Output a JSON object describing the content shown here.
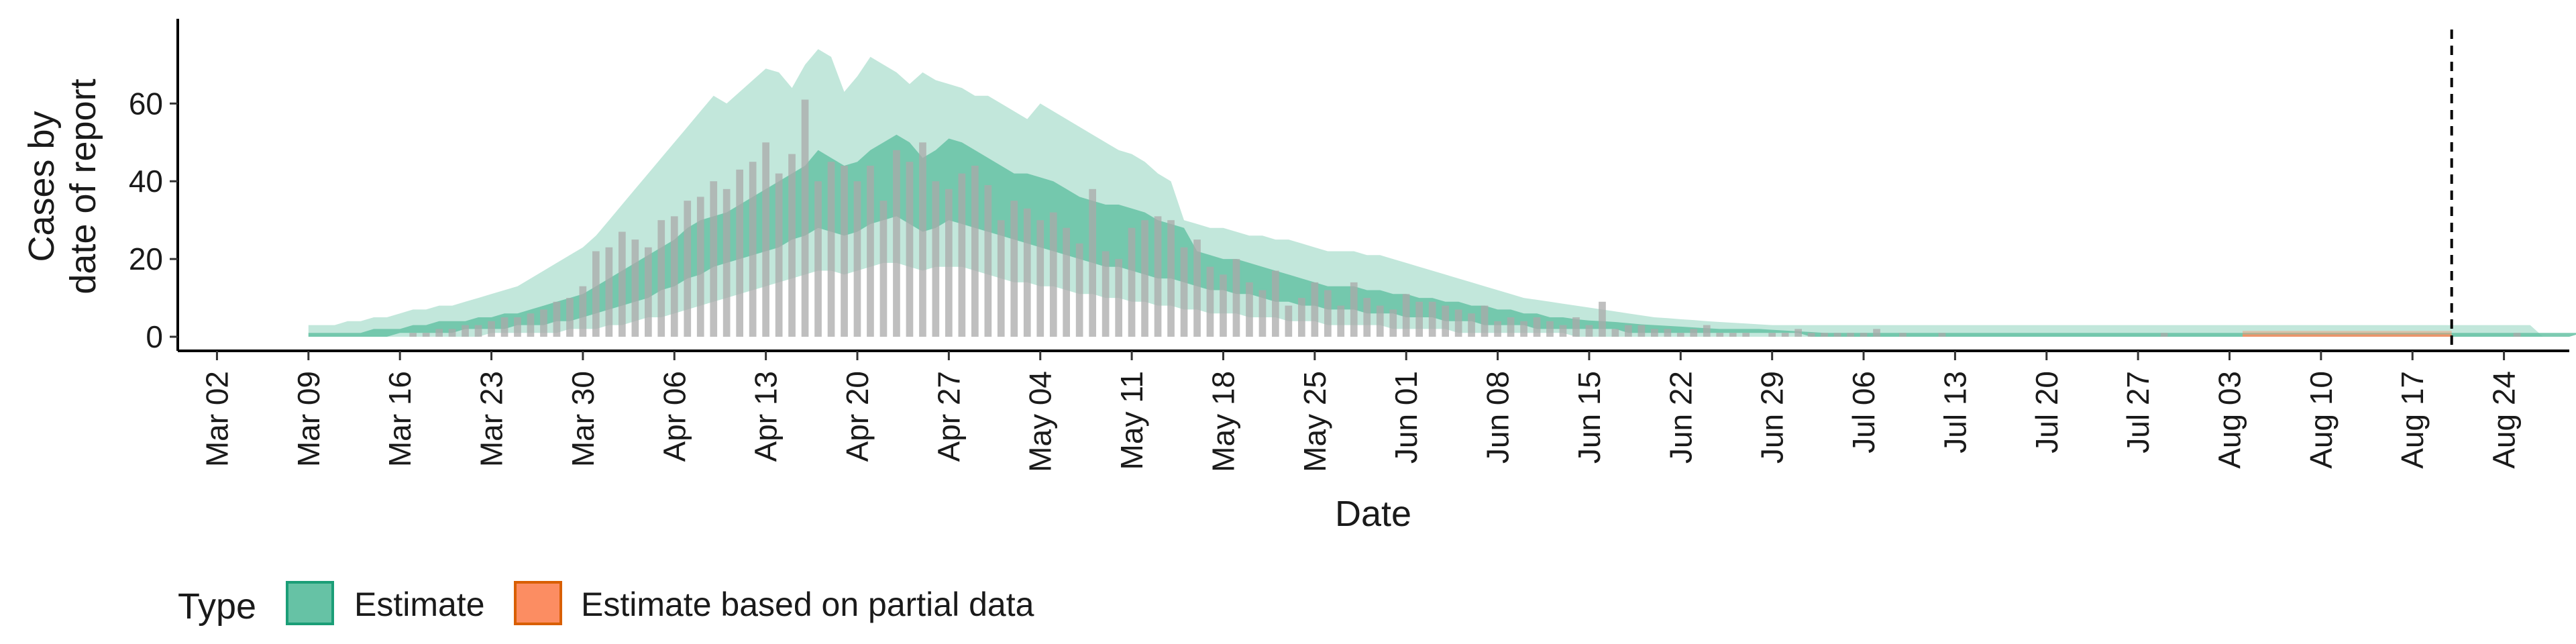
{
  "chart_data": {
    "type": "bar",
    "xlabel": "Date",
    "ylabel_lines": [
      "Cases by",
      "date of report"
    ],
    "ylim": [
      0,
      78
    ],
    "y_ticks": [
      0,
      20,
      40,
      60
    ],
    "x_range": [
      "2020-02-28",
      "2020-08-29"
    ],
    "x_ticks": [
      "Mar 02",
      "Mar 09",
      "Mar 16",
      "Mar 23",
      "Mar 30",
      "Apr 06",
      "Apr 13",
      "Apr 20",
      "Apr 27",
      "May 04",
      "May 11",
      "May 18",
      "May 25",
      "Jun 01",
      "Jun 08",
      "Jun 15",
      "Jun 22",
      "Jun 29",
      "Jul 06",
      "Jul 13",
      "Jul 20",
      "Jul 27",
      "Aug 03",
      "Aug 10",
      "Aug 17",
      "Aug 24"
    ],
    "reference_line_date": "2020-08-20",
    "bar_color": "#a9a9a9",
    "reported_cases": {
      "start_date": "2020-03-09",
      "values": [
        0,
        0,
        0,
        0,
        0,
        0,
        0,
        0,
        1,
        1,
        2,
        2,
        3,
        3,
        4,
        5,
        5,
        6,
        7,
        9,
        10,
        13,
        22,
        23,
        27,
        25,
        23,
        30,
        31,
        35,
        36,
        40,
        38,
        43,
        45,
        50,
        42,
        47,
        61,
        40,
        45,
        44,
        40,
        44,
        35,
        48,
        45,
        50,
        40,
        38,
        42,
        44,
        39,
        30,
        35,
        33,
        30,
        32,
        28,
        24,
        38,
        22,
        20,
        28,
        30,
        31,
        30,
        23,
        25,
        18,
        16,
        20,
        14,
        12,
        17,
        8,
        10,
        14,
        12,
        8,
        14,
        10,
        8,
        7,
        11,
        9,
        9,
        8,
        7,
        6,
        8,
        4,
        5,
        4,
        5,
        4,
        3,
        5,
        3,
        9,
        2,
        3,
        3,
        2,
        2,
        1,
        2,
        3,
        1,
        1,
        1,
        0,
        1,
        1,
        2,
        1,
        1,
        1,
        1,
        1,
        2,
        0,
        1,
        0,
        0,
        1,
        0,
        0,
        0,
        0,
        0,
        0,
        0,
        0,
        0,
        0,
        0,
        0,
        0,
        0,
        0,
        0,
        1,
        0,
        0,
        0,
        0,
        0,
        0,
        0,
        0,
        0,
        0,
        0,
        0,
        0,
        0,
        0,
        0,
        0,
        0,
        0,
        0,
        0,
        0,
        0,
        0,
        0,
        0,
        1,
        0,
        0,
        0
      ]
    },
    "series": [
      {
        "name": "Estimate",
        "color": "#1b9e77",
        "fill": "#66c2a5",
        "start_date": "2020-03-09",
        "upper90": [
          3,
          3,
          3,
          4,
          4,
          5,
          5,
          6,
          7,
          7,
          8,
          8,
          9,
          10,
          11,
          12,
          13,
          15,
          17,
          19,
          21,
          23,
          26,
          30,
          34,
          38,
          42,
          46,
          50,
          54,
          58,
          62,
          60,
          63,
          66,
          69,
          68,
          64,
          70,
          74,
          72,
          63,
          67,
          72,
          70,
          68,
          65,
          68,
          66,
          65,
          64,
          62,
          62,
          60,
          58,
          56,
          60,
          58,
          56,
          54,
          52,
          50,
          48,
          47,
          45,
          42,
          40,
          30,
          29,
          28,
          28,
          27,
          26,
          26,
          25,
          25,
          24,
          23,
          22,
          22,
          22,
          21,
          21,
          20,
          19,
          18,
          17,
          16,
          15,
          14,
          13,
          12,
          11,
          10,
          9.5,
          9,
          8.5,
          8,
          7.5,
          7,
          6.5,
          6,
          5.5,
          5,
          4.8,
          4.5,
          4.3,
          4,
          3.8,
          3.6,
          3.4,
          3.2,
          3,
          3,
          3,
          3,
          3,
          3,
          3,
          3,
          3,
          3,
          3,
          3,
          3,
          3,
          3,
          3,
          3,
          3,
          3,
          3,
          3,
          3,
          3,
          3,
          3,
          3,
          3,
          3,
          3,
          3,
          3,
          3,
          3,
          3,
          3,
          3,
          3,
          3,
          3,
          3,
          3,
          3,
          3,
          3,
          3,
          3,
          3,
          3,
          3,
          3,
          3,
          3,
          3,
          3,
          3,
          3,
          3,
          3,
          3
        ],
        "upper50": [
          1,
          1,
          1,
          1,
          1,
          2,
          2,
          2,
          3,
          3,
          4,
          4,
          4,
          5,
          5,
          6,
          6,
          7,
          8,
          9,
          10,
          11,
          13,
          15,
          17,
          19,
          21,
          23,
          25,
          28,
          30,
          31,
          32,
          34,
          36,
          38,
          40,
          42,
          44,
          48,
          46,
          44,
          45,
          48,
          50,
          52,
          50,
          46,
          48,
          51,
          50,
          48,
          46,
          44,
          42,
          42,
          41,
          40,
          38,
          36,
          35,
          34,
          34,
          33,
          32,
          30,
          29,
          28,
          22,
          21,
          20,
          20,
          19,
          18,
          17,
          16,
          15,
          14,
          13,
          13,
          13,
          12,
          12,
          11,
          11,
          10,
          10,
          9,
          9,
          8,
          8,
          7,
          7,
          6,
          6,
          5,
          5,
          4.5,
          4.2,
          4,
          3.8,
          3.5,
          3.2,
          3,
          2.8,
          2.6,
          2.4,
          2.2,
          2,
          2,
          2,
          2,
          1.8,
          1.6,
          1.4,
          1.2,
          1,
          1,
          1,
          1,
          1,
          1,
          1,
          1,
          1,
          1,
          1,
          1,
          1,
          1,
          1,
          1,
          1,
          1,
          1,
          1,
          1,
          1,
          1,
          1,
          1,
          1,
          1,
          1,
          1,
          1,
          1,
          1,
          1,
          1,
          1,
          1,
          1,
          1,
          1,
          1,
          1,
          1,
          1,
          1,
          1,
          1,
          1,
          1,
          1,
          1,
          1,
          1,
          1,
          1,
          1,
          1,
          1,
          1,
          1
        ],
        "lower50": [
          0,
          0,
          0,
          0,
          0,
          0,
          0,
          1,
          1,
          1,
          1,
          1,
          2,
          2,
          2,
          2,
          3,
          3,
          3,
          4,
          4,
          5,
          6,
          7,
          8,
          9,
          10,
          12,
          13,
          15,
          16,
          18,
          19,
          20,
          21,
          22,
          23,
          25,
          26,
          28,
          27,
          26,
          27,
          29,
          30,
          31,
          29,
          27,
          28,
          30,
          29,
          28,
          27,
          26,
          25,
          24,
          23,
          22,
          21,
          20,
          19,
          18,
          18,
          17,
          16,
          15,
          15,
          14,
          13,
          12,
          12,
          11,
          11,
          10,
          9,
          9,
          8,
          8,
          7,
          7,
          7,
          6,
          6,
          6,
          5,
          5,
          5,
          4,
          4,
          4,
          3,
          3,
          3,
          3,
          2,
          2,
          2,
          2,
          2,
          2,
          2,
          1,
          1,
          1,
          1,
          1,
          1,
          1,
          1,
          1,
          1,
          1,
          1,
          1,
          1,
          0,
          0,
          0,
          0,
          0,
          0,
          0,
          0,
          0,
          0,
          0,
          0,
          0,
          0,
          0,
          0,
          0,
          0,
          0,
          0,
          0,
          0,
          0,
          0,
          0,
          0,
          0,
          0,
          0,
          0,
          0,
          0,
          0,
          0,
          0,
          0,
          0,
          0,
          0,
          0,
          0,
          0,
          0,
          0,
          0,
          0,
          0,
          0,
          0,
          0,
          0,
          0,
          0,
          0,
          0,
          0,
          0,
          0,
          0
        ],
        "lower90": [
          0,
          0,
          0,
          0,
          0,
          0,
          0,
          0,
          0,
          0,
          0,
          0,
          0,
          0,
          1,
          1,
          1,
          1,
          1,
          1,
          2,
          2,
          2,
          3,
          3,
          4,
          5,
          5,
          6,
          7,
          8,
          9,
          10,
          11,
          12,
          13,
          14,
          15,
          16,
          17,
          17,
          16,
          17,
          18,
          19,
          19,
          18,
          17,
          18,
          18,
          18,
          17,
          16,
          15,
          14,
          14,
          13,
          13,
          12,
          11,
          11,
          10,
          10,
          9,
          9,
          8,
          8,
          7,
          7,
          6,
          6,
          6,
          5,
          5,
          5,
          4,
          4,
          4,
          3,
          3,
          3,
          3,
          3,
          2,
          2,
          2,
          2,
          2,
          1,
          1,
          1,
          1,
          1,
          1,
          1,
          1,
          1,
          0,
          0,
          0,
          0,
          0,
          0,
          0,
          0,
          0,
          0,
          0,
          0,
          0,
          0,
          0,
          0,
          0,
          0,
          0,
          0,
          0,
          0,
          0,
          0,
          0,
          0,
          0,
          0,
          0,
          0,
          0,
          0,
          0,
          0,
          0,
          0,
          0,
          0,
          0,
          0,
          0,
          0,
          0,
          0,
          0,
          0,
          0,
          0,
          0,
          0,
          0,
          0,
          0,
          0,
          0,
          0,
          0,
          0,
          0,
          0,
          0,
          0,
          0,
          0,
          0,
          0,
          0,
          0,
          0,
          0,
          0,
          0,
          0,
          0,
          0
        ]
      },
      {
        "name": "Estimate based on partial data",
        "color": "#d95f02",
        "fill": "#fc8d62",
        "date_range": [
          "2020-08-04",
          "2020-08-20"
        ],
        "upper90": 1.5,
        "upper50": 0.6,
        "lower50": 0,
        "lower90": 0
      }
    ],
    "legend": {
      "title": "Type",
      "position": "bottom",
      "items": [
        {
          "label": "Estimate",
          "fill": "#66c2a5",
          "stroke": "#1b9e77"
        },
        {
          "label": "Estimate based on partial data",
          "fill": "#fc8d62",
          "stroke": "#d95f02"
        }
      ]
    },
    "grid": false
  }
}
